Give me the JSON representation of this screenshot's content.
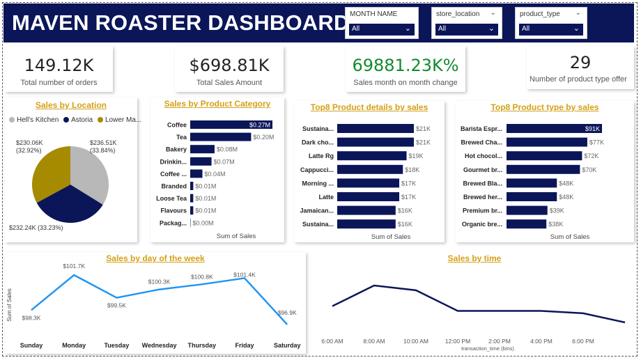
{
  "header": {
    "title": "MAVEN ROASTER DASHBOARD"
  },
  "slicers": [
    {
      "label": "MONTH NAME",
      "value": "All"
    },
    {
      "label": "store_location",
      "value": "All"
    },
    {
      "label": "product_type",
      "value": "All"
    }
  ],
  "kpis": [
    {
      "value": "149.12K",
      "caption": "Total number of orders",
      "color": "#252423"
    },
    {
      "value": "$698.81K",
      "caption": "Total Sales Amount",
      "color": "#252423"
    },
    {
      "value": "69881.23K%",
      "caption": "Sales month on month change",
      "color": "#128a2e"
    },
    {
      "value": "29",
      "caption": "Number of product type offer",
      "color": "#252423"
    }
  ],
  "colors": {
    "navy": "#0b1659",
    "gold": "#d4a017",
    "line_blue": "#2196f3",
    "pie_gray": "#b8b8b8",
    "pie_gold": "#a68b00"
  },
  "chart_data": [
    {
      "id": "location",
      "type": "pie",
      "title": "Sales by Location",
      "legend": [
        "Hell's Kitchen",
        "Astoria",
        "Lower Ma..."
      ],
      "slices": [
        {
          "name": "Hell's Kitchen",
          "value": 236.51,
          "label": "$236.51K (33.84%)",
          "color": "#b8b8b8"
        },
        {
          "name": "Astoria",
          "value": 232.24,
          "label": "$232.24K (33.23%)",
          "color": "#0b1659"
        },
        {
          "name": "Lower Manhattan",
          "value": 230.06,
          "label": "$230.06K (32.92%)",
          "color": "#a68b00"
        }
      ]
    },
    {
      "id": "category",
      "type": "bar",
      "title": "Sales by Product Category",
      "xlabel": "Sum of Sales",
      "categories": [
        "Coffee",
        "Tea",
        "Bakery",
        "Drinkin...",
        "Coffee ...",
        "Branded",
        "Loose Tea",
        "Flavours",
        "Packag..."
      ],
      "values": [
        0.27,
        0.2,
        0.08,
        0.07,
        0.04,
        0.01,
        0.01,
        0.01,
        0.0
      ],
      "labels": [
        "$0.27M",
        "$0.20M",
        "$0.08M",
        "$0.07M",
        "$0.04M",
        "$0.01M",
        "$0.01M",
        "$0.01M",
        "$0.00M"
      ]
    },
    {
      "id": "top8detail",
      "type": "bar",
      "title": "Top8 Product details by sales",
      "xlabel": "Sum of Sales",
      "categories": [
        "Sustaina...",
        "Dark cho...",
        "Latte Rg",
        "Cappucci...",
        "Morning ...",
        "Latte",
        "Jamaican...",
        "Sustaina..."
      ],
      "values": [
        21,
        21,
        19,
        18,
        17,
        17,
        16,
        16
      ],
      "labels": [
        "$21K",
        "$21K",
        "$19K",
        "$18K",
        "$17K",
        "$17K",
        "$16K",
        "$16K"
      ]
    },
    {
      "id": "top8type",
      "type": "bar",
      "title": "Top8 Product type by sales",
      "xlabel": "Sum of Sales",
      "categories": [
        "Barista Espr...",
        "Brewed Cha...",
        "Hot chocol...",
        "Gourmet br...",
        "Brewed Bla...",
        "Brewed her...",
        "Premium br...",
        "Organic bre..."
      ],
      "values": [
        91,
        77,
        72,
        70,
        48,
        48,
        39,
        38
      ],
      "labels": [
        "$91K",
        "$77K",
        "$72K",
        "$70K",
        "$48K",
        "$48K",
        "$39K",
        "$38K"
      ]
    },
    {
      "id": "weekday",
      "type": "line",
      "title": "Sales by day of the week",
      "ylabel": "Sum of Sales",
      "categories": [
        "Sunday",
        "Monday",
        "Tuesday",
        "Wednesday",
        "Thursday",
        "Friday",
        "Saturday"
      ],
      "values": [
        98.3,
        101.7,
        99.5,
        100.3,
        100.8,
        101.4,
        96.9
      ],
      "labels": [
        "$98.3K",
        "$101.7K",
        "$99.5K",
        "$100.3K",
        "$100.8K",
        "$101.4K",
        "$96.9K"
      ]
    },
    {
      "id": "time",
      "type": "line",
      "title": "Sales by time",
      "xlabel": "transaction_time (bins)",
      "x_ticks": [
        "6:00 AM",
        "8:00 AM",
        "10:00 AM",
        "12:00 PM",
        "2:00 PM",
        "4:00 PM",
        "6:00 PM"
      ],
      "x": [
        6,
        8,
        10,
        12,
        14,
        16,
        18,
        20
      ],
      "values": [
        0.48,
        1.0,
        0.88,
        0.36,
        0.36,
        0.36,
        0.3,
        0.07
      ]
    }
  ]
}
